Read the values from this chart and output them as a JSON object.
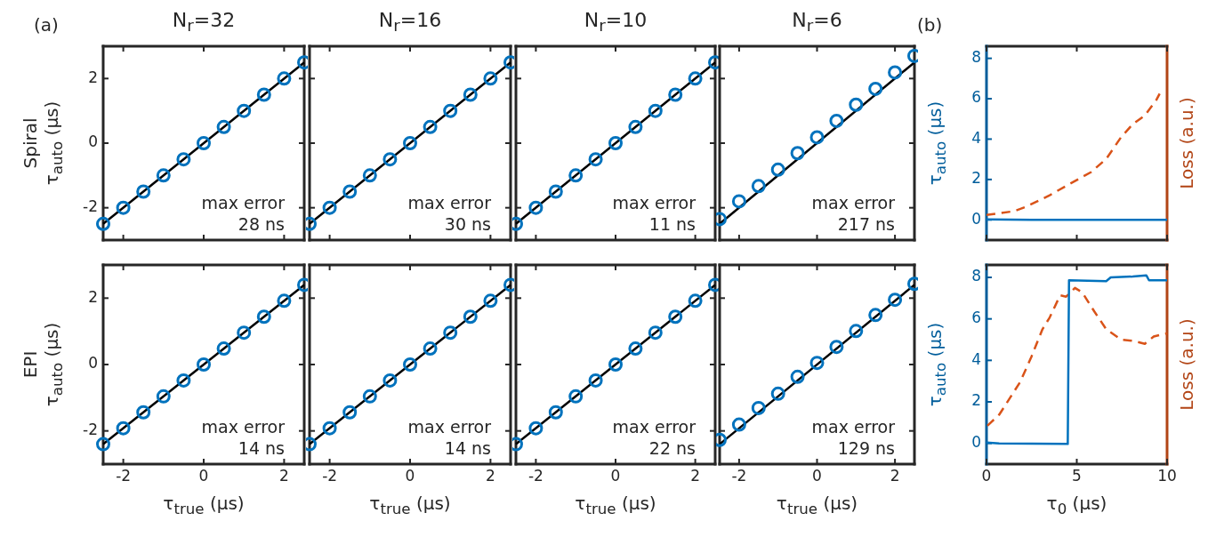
{
  "chart_data": [
    {
      "type": "scatter",
      "title": "N$_{r}$=32",
      "ylabel": "Spiral\nτ$_{auto}$ (μs)",
      "annotations": [
        "(a)",
        "max error\n28 ns"
      ],
      "xlim": [
        -2.5,
        2.5
      ],
      "xticks": [
        -2,
        0,
        2
      ],
      "ylim": [
        -3,
        3
      ],
      "yticks": [
        -2,
        0,
        2
      ],
      "grid": false,
      "tick_labels": "y",
      "series": [
        {
          "type": "scatter",
          "marker": "circle",
          "color": "#0072bd",
          "x": [
            -2.5,
            -2,
            -1.5,
            -1,
            -0.5,
            0,
            0.5,
            1,
            1.5,
            2,
            2.5
          ],
          "values": [
            -2.5,
            -2,
            -1.5,
            -1,
            -0.5,
            0,
            0.5,
            1,
            1.5,
            2,
            2.5
          ]
        },
        {
          "type": "line",
          "marker": "none",
          "line_style": "solid",
          "color": "#000000",
          "x": [
            -2.5,
            2.5
          ],
          "values": [
            -2.5,
            2.5
          ]
        }
      ]
    },
    {
      "type": "scatter",
      "title": "N$_{r}$=16",
      "annotations": [
        "max error\n30 ns"
      ],
      "xlim": [
        -2.5,
        2.5
      ],
      "xticks": [
        -2,
        0,
        2
      ],
      "ylim": [
        -3,
        3
      ],
      "yticks": [
        -2,
        0,
        2
      ],
      "grid": false,
      "tick_labels": false,
      "series": [
        {
          "type": "scatter",
          "marker": "circle",
          "color": "#0072bd",
          "x": [
            -2.5,
            -2,
            -1.5,
            -1,
            -0.5,
            0,
            0.5,
            1,
            1.5,
            2,
            2.5
          ],
          "values": [
            -2.5,
            -2,
            -1.5,
            -1,
            -0.5,
            0,
            0.5,
            1,
            1.5,
            2,
            2.5
          ]
        },
        {
          "type": "line",
          "marker": "none",
          "line_style": "solid",
          "color": "#000000",
          "x": [
            -2.5,
            2.5
          ],
          "values": [
            -2.5,
            2.5
          ]
        }
      ]
    },
    {
      "type": "scatter",
      "title": "N$_{r}$=10",
      "annotations": [
        "max error\n11 ns"
      ],
      "xlim": [
        -2.5,
        2.5
      ],
      "xticks": [
        -2,
        0,
        2
      ],
      "ylim": [
        -3,
        3
      ],
      "yticks": [
        -2,
        0,
        2
      ],
      "grid": false,
      "tick_labels": false,
      "series": [
        {
          "type": "scatter",
          "marker": "circle",
          "color": "#0072bd",
          "x": [
            -2.5,
            -2,
            -1.5,
            -1,
            -0.5,
            0,
            0.5,
            1,
            1.5,
            2,
            2.5
          ],
          "values": [
            -2.5,
            -2,
            -1.5,
            -1,
            -0.5,
            0,
            0.5,
            1,
            1.5,
            2,
            2.5
          ]
        },
        {
          "type": "line",
          "marker": "none",
          "line_style": "solid",
          "color": "#000000",
          "x": [
            -2.5,
            2.5
          ],
          "values": [
            -2.5,
            2.5
          ]
        }
      ]
    },
    {
      "type": "scatter",
      "title": "N$_{r}$=6",
      "annotations": [
        "max error\n217 ns"
      ],
      "xlim": [
        -2.5,
        2.5
      ],
      "xticks": [
        -2,
        0,
        2
      ],
      "ylim": [
        -3,
        3
      ],
      "yticks": [
        -2,
        0,
        2
      ],
      "grid": false,
      "tick_labels": false,
      "series": [
        {
          "type": "scatter",
          "marker": "circle",
          "color": "#0072bd",
          "x": [
            -2.5,
            -2,
            -1.5,
            -1,
            -0.5,
            0,
            0.5,
            1,
            1.5,
            2,
            2.5
          ],
          "values": [
            -2.35,
            -1.8,
            -1.33,
            -0.82,
            -0.31,
            0.18,
            0.69,
            1.19,
            1.68,
            2.19,
            2.7
          ]
        },
        {
          "type": "line",
          "marker": "none",
          "line_style": "solid",
          "color": "#000000",
          "x": [
            -2.5,
            2.5
          ],
          "values": [
            -2.5,
            2.5
          ]
        }
      ]
    },
    {
      "type": "line",
      "ylabel": "τ$_{auto}$ (μs)",
      "y2label": "Loss (a.u.)",
      "annotations": [
        "(b)"
      ],
      "xlim": [
        0,
        10
      ],
      "xticks": [
        0,
        5,
        10
      ],
      "ylim": [
        -1,
        8.6
      ],
      "yticks": [
        0,
        2,
        4,
        6,
        8
      ],
      "grid": false,
      "tick_labels": "y",
      "series": [
        {
          "type": "line",
          "marker": "none",
          "line_style": "solid",
          "color": "#0072bd",
          "x": [
            0,
            2.5,
            10
          ],
          "values": [
            0.02,
            0,
            0
          ]
        },
        {
          "type": "line",
          "marker": "none",
          "line_style": "dashed",
          "color": "#d95319",
          "x": [
            0,
            1.53,
            2.19,
            3.5,
            4.49,
            5.8,
            6.63,
            7.45,
            8.1,
            8.77,
            9.42,
            9.59
          ],
          "values": [
            0.24,
            0.43,
            0.65,
            1.22,
            1.72,
            2.37,
            3.02,
            4.09,
            4.74,
            5.17,
            5.96,
            6.25
          ]
        }
      ]
    },
    {
      "type": "scatter",
      "xlabel": "τ$_{true}$ (μs)",
      "ylabel": "EPI\nτ$_{auto}$ (μs)",
      "annotations": [
        "max error\n14 ns"
      ],
      "xlim": [
        -2.5,
        2.5
      ],
      "xticks": [
        -2,
        0,
        2
      ],
      "ylim": [
        -3,
        3
      ],
      "yticks": [
        -2,
        0,
        2
      ],
      "grid": false,
      "series": [
        {
          "type": "scatter",
          "marker": "circle",
          "color": "#0072bd",
          "x": [
            -2.5,
            -2,
            -1.5,
            -1,
            -0.5,
            0,
            0.5,
            1,
            1.5,
            2,
            2.5
          ],
          "values": [
            -2.4,
            -1.92,
            -1.44,
            -0.96,
            -0.48,
            0,
            0.48,
            0.96,
            1.44,
            1.92,
            2.4
          ]
        },
        {
          "type": "line",
          "marker": "none",
          "line_style": "solid",
          "color": "#000000",
          "x": [
            -2.5,
            2.5
          ],
          "values": [
            -2.4,
            2.4
          ]
        }
      ]
    },
    {
      "type": "scatter",
      "xlabel": "τ$_{true}$ (μs)",
      "annotations": [
        "max error\n14 ns"
      ],
      "xlim": [
        -2.5,
        2.5
      ],
      "xticks": [
        -2,
        0,
        2
      ],
      "ylim": [
        -3,
        3
      ],
      "yticks": [
        -2,
        0,
        2
      ],
      "grid": false,
      "tick_labels": "x",
      "series": [
        {
          "type": "scatter",
          "marker": "circle",
          "color": "#0072bd",
          "x": [
            -2.5,
            -2,
            -1.5,
            -1,
            -0.5,
            0,
            0.5,
            1,
            1.5,
            2,
            2.5
          ],
          "values": [
            -2.4,
            -1.92,
            -1.44,
            -0.96,
            -0.48,
            0,
            0.48,
            0.96,
            1.44,
            1.92,
            2.4
          ]
        },
        {
          "type": "line",
          "marker": "none",
          "line_style": "solid",
          "color": "#000000",
          "x": [
            -2.5,
            2.5
          ],
          "values": [
            -2.4,
            2.4
          ]
        }
      ]
    },
    {
      "type": "scatter",
      "xlabel": "τ$_{true}$ (μs)",
      "annotations": [
        "max error\n22 ns"
      ],
      "xlim": [
        -2.5,
        2.5
      ],
      "xticks": [
        -2,
        0,
        2
      ],
      "ylim": [
        -3,
        3
      ],
      "yticks": [
        -2,
        0,
        2
      ],
      "grid": false,
      "tick_labels": "x",
      "series": [
        {
          "type": "scatter",
          "marker": "circle",
          "color": "#0072bd",
          "x": [
            -2.5,
            -2,
            -1.5,
            -1,
            -0.5,
            0,
            0.5,
            1,
            1.5,
            2,
            2.5
          ],
          "values": [
            -2.4,
            -1.92,
            -1.44,
            -0.96,
            -0.48,
            0,
            0.48,
            0.96,
            1.44,
            1.92,
            2.4
          ]
        },
        {
          "type": "line",
          "marker": "none",
          "line_style": "solid",
          "color": "#000000",
          "x": [
            -2.5,
            2.5
          ],
          "values": [
            -2.4,
            2.4
          ]
        }
      ]
    },
    {
      "type": "scatter",
      "xlabel": "τ$_{true}$ (μs)",
      "annotations": [
        "max error\n129 ns"
      ],
      "xlim": [
        -2.5,
        2.5
      ],
      "xticks": [
        -2,
        0,
        2
      ],
      "ylim": [
        -3,
        3
      ],
      "yticks": [
        -2,
        0,
        2
      ],
      "grid": false,
      "tick_labels": "x",
      "series": [
        {
          "type": "scatter",
          "marker": "circle",
          "color": "#0072bd",
          "x": [
            -2.5,
            -2,
            -1.5,
            -1,
            -0.5,
            0,
            0.5,
            1,
            1.5,
            2,
            2.5
          ],
          "values": [
            -2.27,
            -1.81,
            -1.31,
            -0.88,
            -0.37,
            0.05,
            0.53,
            1.01,
            1.49,
            1.95,
            2.43
          ]
        },
        {
          "type": "line",
          "marker": "none",
          "line_style": "solid",
          "color": "#000000",
          "x": [
            -2.5,
            2.5
          ],
          "values": [
            -2.4,
            2.4
          ]
        }
      ]
    },
    {
      "type": "line",
      "xlabel": "τ$_{0}$ (μs)",
      "ylabel": "τ$_{auto}$ (μs)",
      "y2label": "Loss (a.u.)",
      "xlim": [
        0,
        10
      ],
      "xticks": [
        0,
        5,
        10
      ],
      "ylim": [
        -1,
        8.6
      ],
      "yticks": [
        0,
        2,
        4,
        6,
        8
      ],
      "grid": false,
      "series": [
        {
          "type": "line",
          "marker": "none",
          "line_style": "solid",
          "color": "#0072bd",
          "x": [
            0,
            0.7,
            4.33,
            4.5,
            4.57,
            6.63,
            6.88,
            8.1,
            8.85,
            9,
            10
          ],
          "values": [
            0.04,
            0,
            -0.03,
            -0.03,
            7.86,
            7.82,
            8,
            8.04,
            8.1,
            7.86,
            7.86
          ]
        },
        {
          "type": "line",
          "marker": "none",
          "line_style": "dashed",
          "color": "#d95319",
          "x": [
            0.05,
            0.71,
            1.86,
            2.5,
            3.1,
            3.5,
            4.08,
            4.41,
            4.9,
            5.3,
            5.97,
            6.63,
            7.45,
            8.1,
            8.77,
            9.26,
            10
          ],
          "values": [
            0.85,
            1.39,
            2.95,
            4.2,
            5.5,
            6.07,
            7.14,
            7.07,
            7.49,
            7.28,
            6.36,
            5.5,
            5,
            4.94,
            4.8,
            5.15,
            5.3
          ]
        }
      ]
    }
  ]
}
